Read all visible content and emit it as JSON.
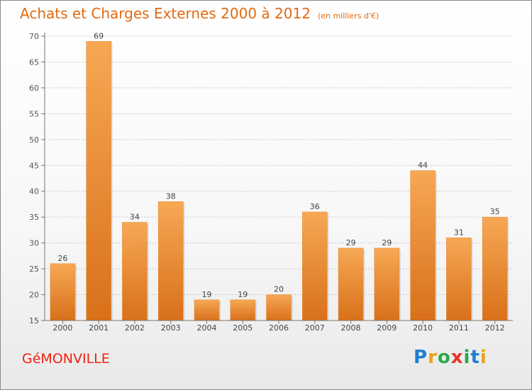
{
  "chart_data": {
    "type": "bar",
    "title": "Achats et Charges Externes 2000 à 2012",
    "subtitle": "(en milliers d'€)",
    "categories": [
      "2000",
      "2001",
      "2002",
      "2003",
      "2004",
      "2005",
      "2006",
      "2007",
      "2008",
      "2009",
      "2010",
      "2011",
      "2012"
    ],
    "values": [
      26,
      69,
      34,
      38,
      19,
      19,
      20,
      36,
      29,
      29,
      44,
      31,
      35
    ],
    "ylim": [
      15,
      70
    ],
    "yticks": [
      15,
      20,
      25,
      30,
      35,
      40,
      45,
      50,
      55,
      60,
      65,
      70
    ],
    "grid": true,
    "bar_color": "#ee8830",
    "bar_color_light": "#f6a854",
    "bar_color_dark": "#d9701a"
  },
  "footer": {
    "commune": "GéMONVILLE",
    "logo_letters": [
      "P",
      "r",
      "o",
      "x",
      "i",
      "t",
      "i"
    ],
    "logo_colors": [
      "#1e7fd0",
      "#e8a317",
      "#2aa84a",
      "#e8342a",
      "#2aa84a",
      "#1e7fd0",
      "#e8a317"
    ]
  }
}
